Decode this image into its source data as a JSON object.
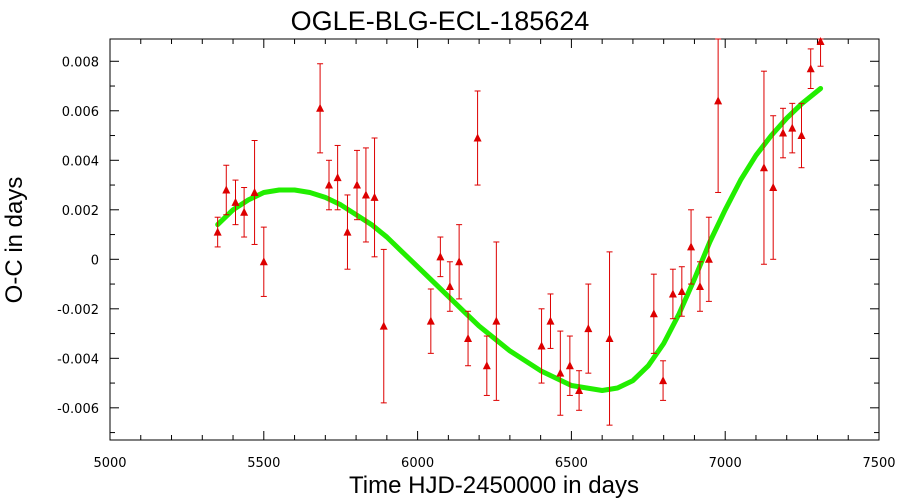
{
  "chart_data": {
    "type": "scatter",
    "title": "OGLE-BLG-ECL-185624",
    "xlabel": "Time HJD-2450000 in days",
    "ylabel": "O-C in days",
    "xlim": [
      5000,
      7500
    ],
    "ylim": [
      -0.0073,
      0.0089
    ],
    "x_ticks": [
      5000,
      5500,
      6000,
      6500,
      7000,
      7500
    ],
    "x_tick_labels": [
      "5000",
      "5500",
      "6000",
      "6500",
      "7000",
      "7500"
    ],
    "y_ticks": [
      -0.006,
      -0.004,
      -0.002,
      0,
      0.002,
      0.004,
      0.006,
      0.008
    ],
    "y_tick_labels": [
      "-0.006",
      "-0.004",
      "-0.002",
      "0",
      "0.002",
      "0.004",
      "0.006",
      "0.008"
    ],
    "grid": false,
    "colors": {
      "points": "#dd0000",
      "fit": "#22ee00",
      "axes": "#000000"
    },
    "points": [
      {
        "x": 5350,
        "y": 0.0011,
        "err": 0.0006
      },
      {
        "x": 5378,
        "y": 0.0028,
        "err": 0.001
      },
      {
        "x": 5408,
        "y": 0.0023,
        "err": 0.0009
      },
      {
        "x": 5436,
        "y": 0.0019,
        "err": 0.001
      },
      {
        "x": 5470,
        "y": 0.0027,
        "err": 0.0021
      },
      {
        "x": 5500,
        "y": -0.0001,
        "err": 0.0014
      },
      {
        "x": 5683,
        "y": 0.0061,
        "err": 0.0018
      },
      {
        "x": 5712,
        "y": 0.003,
        "err": 0.001
      },
      {
        "x": 5740,
        "y": 0.0033,
        "err": 0.0013
      },
      {
        "x": 5772,
        "y": 0.0011,
        "err": 0.0015
      },
      {
        "x": 5803,
        "y": 0.003,
        "err": 0.0014
      },
      {
        "x": 5832,
        "y": 0.0026,
        "err": 0.0019
      },
      {
        "x": 5860,
        "y": 0.0025,
        "err": 0.0024
      },
      {
        "x": 5890,
        "y": -0.0027,
        "err": 0.0031
      },
      {
        "x": 6043,
        "y": -0.0025,
        "err": 0.0013
      },
      {
        "x": 6074,
        "y": 0.0001,
        "err": 0.0008
      },
      {
        "x": 6105,
        "y": -0.0011,
        "err": 0.001
      },
      {
        "x": 6135,
        "y": -0.0001,
        "err": 0.0015
      },
      {
        "x": 6164,
        "y": -0.0032,
        "err": 0.0011
      },
      {
        "x": 6195,
        "y": 0.0049,
        "err": 0.0019
      },
      {
        "x": 6225,
        "y": -0.0043,
        "err": 0.0012
      },
      {
        "x": 6256,
        "y": -0.0025,
        "err": 0.0032
      },
      {
        "x": 6403,
        "y": -0.0035,
        "err": 0.0015
      },
      {
        "x": 6432,
        "y": -0.0025,
        "err": 0.0011
      },
      {
        "x": 6464,
        "y": -0.0046,
        "err": 0.0017
      },
      {
        "x": 6495,
        "y": -0.0043,
        "err": 0.0012
      },
      {
        "x": 6525,
        "y": -0.0053,
        "err": 0.0008
      },
      {
        "x": 6555,
        "y": -0.0028,
        "err": 0.0018
      },
      {
        "x": 6624,
        "y": -0.0032,
        "err": 0.0035
      },
      {
        "x": 6768,
        "y": -0.0022,
        "err": 0.0016
      },
      {
        "x": 6798,
        "y": -0.0049,
        "err": 0.0008
      },
      {
        "x": 6830,
        "y": -0.0014,
        "err": 0.001
      },
      {
        "x": 6859,
        "y": -0.0013,
        "err": 0.001
      },
      {
        "x": 6889,
        "y": 0.0005,
        "err": 0.0015
      },
      {
        "x": 6918,
        "y": -0.0011,
        "err": 0.001
      },
      {
        "x": 6947,
        "y": 0.0,
        "err": 0.0017
      },
      {
        "x": 6977,
        "y": 0.0064,
        "err": 0.0037
      },
      {
        "x": 7126,
        "y": 0.0037,
        "err": 0.0039
      },
      {
        "x": 7156,
        "y": 0.0029,
        "err": 0.0029
      },
      {
        "x": 7188,
        "y": 0.0051,
        "err": 0.001
      },
      {
        "x": 7218,
        "y": 0.0053,
        "err": 0.001
      },
      {
        "x": 7248,
        "y": 0.005,
        "err": 0.0013
      },
      {
        "x": 7278,
        "y": 0.0077,
        "err": 0.0008
      },
      {
        "x": 7310,
        "y": 0.0088,
        "err": 0.001
      }
    ],
    "fit_curve": [
      {
        "x": 5350,
        "y": 0.0014
      },
      {
        "x": 5400,
        "y": 0.002
      },
      {
        "x": 5450,
        "y": 0.0024
      },
      {
        "x": 5500,
        "y": 0.0027
      },
      {
        "x": 5550,
        "y": 0.0028
      },
      {
        "x": 5600,
        "y": 0.0028
      },
      {
        "x": 5650,
        "y": 0.0027
      },
      {
        "x": 5700,
        "y": 0.0025
      },
      {
        "x": 5750,
        "y": 0.0022
      },
      {
        "x": 5800,
        "y": 0.0018
      },
      {
        "x": 5850,
        "y": 0.0014
      },
      {
        "x": 5900,
        "y": 0.0009
      },
      {
        "x": 5950,
        "y": 0.0003
      },
      {
        "x": 6000,
        "y": -0.0003
      },
      {
        "x": 6050,
        "y": -0.0009
      },
      {
        "x": 6100,
        "y": -0.0015
      },
      {
        "x": 6150,
        "y": -0.0021
      },
      {
        "x": 6200,
        "y": -0.0027
      },
      {
        "x": 6250,
        "y": -0.0032
      },
      {
        "x": 6300,
        "y": -0.0037
      },
      {
        "x": 6350,
        "y": -0.0041
      },
      {
        "x": 6400,
        "y": -0.0045
      },
      {
        "x": 6450,
        "y": -0.0048
      },
      {
        "x": 6500,
        "y": -0.0051
      },
      {
        "x": 6550,
        "y": -0.0052
      },
      {
        "x": 6600,
        "y": -0.0053
      },
      {
        "x": 6650,
        "y": -0.0052
      },
      {
        "x": 6700,
        "y": -0.0049
      },
      {
        "x": 6750,
        "y": -0.0043
      },
      {
        "x": 6800,
        "y": -0.0034
      },
      {
        "x": 6850,
        "y": -0.0022
      },
      {
        "x": 6900,
        "y": -0.0008
      },
      {
        "x": 6950,
        "y": 0.0007
      },
      {
        "x": 7000,
        "y": 0.002
      },
      {
        "x": 7050,
        "y": 0.0032
      },
      {
        "x": 7100,
        "y": 0.0042
      },
      {
        "x": 7150,
        "y": 0.005
      },
      {
        "x": 7200,
        "y": 0.0057
      },
      {
        "x": 7250,
        "y": 0.0063
      },
      {
        "x": 7310,
        "y": 0.0069
      }
    ]
  }
}
